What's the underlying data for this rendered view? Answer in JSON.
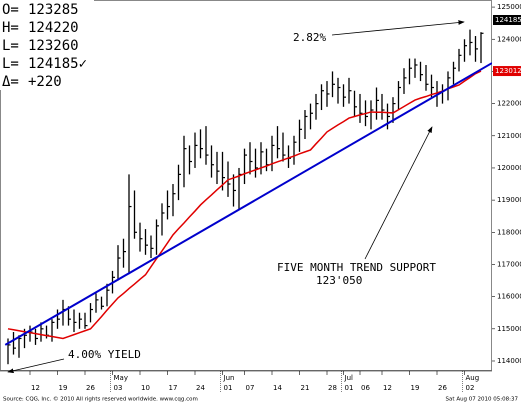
{
  "chart_data": {
    "type": "ohlc",
    "header": [
      {
        "key": "O=",
        "text": "123285"
      },
      {
        "key": "H=",
        "text": "124220"
      },
      {
        "key": "L=",
        "text": "123260"
      },
      {
        "key": "L=",
        "text": "124185✓"
      },
      {
        "key": "Δ=",
        "text": "+220"
      }
    ],
    "categories": [
      null,
      null,
      null,
      null,
      "12",
      null,
      null,
      null,
      null,
      "19",
      null,
      null,
      null,
      null,
      "26",
      null,
      null,
      null,
      null,
      "03",
      null,
      null,
      null,
      null,
      "10",
      null,
      null,
      null,
      null,
      "17",
      null,
      null,
      null,
      null,
      "24",
      null,
      null,
      null,
      null,
      "01",
      null,
      null,
      null,
      "07",
      null,
      null,
      null,
      null,
      "14",
      null,
      null,
      null,
      null,
      "21",
      null,
      null,
      null,
      null,
      "28",
      null,
      null,
      "01",
      null,
      null,
      "06",
      null,
      null,
      null,
      "12",
      null,
      null,
      null,
      null,
      "19",
      null,
      null,
      null,
      null,
      "26",
      null,
      null,
      null,
      null,
      "02",
      null,
      null,
      null
    ],
    "months": [
      null,
      null,
      null,
      null,
      null,
      null,
      null,
      null,
      null,
      null,
      null,
      null,
      null,
      null,
      null,
      null,
      null,
      null,
      null,
      "May",
      null,
      null,
      null,
      null,
      null,
      null,
      null,
      null,
      null,
      null,
      null,
      null,
      null,
      null,
      null,
      null,
      null,
      null,
      null,
      "Jun",
      null,
      null,
      null,
      null,
      null,
      null,
      null,
      null,
      null,
      null,
      null,
      null,
      null,
      null,
      null,
      null,
      null,
      null,
      null,
      null,
      null,
      "Jul",
      null,
      null,
      null,
      null,
      null,
      null,
      null,
      null,
      null,
      null,
      null,
      null,
      null,
      null,
      null,
      null,
      null,
      null,
      null,
      null,
      null,
      "Aug",
      null,
      null,
      null
    ],
    "bar_color": "#000000",
    "high": [
      114700,
      114900,
      114800,
      115000,
      115100,
      115000,
      115200,
      115100,
      115300,
      115600,
      115900,
      115700,
      115600,
      115500,
      115500,
      115800,
      116100,
      116000,
      116400,
      116800,
      117600,
      117800,
      119800,
      119300,
      118300,
      118100,
      117900,
      118400,
      118900,
      119300,
      119500,
      120100,
      121000,
      120700,
      121100,
      121200,
      121300,
      120700,
      120500,
      120500,
      120200,
      119800,
      120000,
      120600,
      120800,
      120600,
      120800,
      120600,
      121000,
      121300,
      121100,
      120700,
      121000,
      121500,
      121800,
      122000,
      122300,
      122600,
      122700,
      123000,
      122800,
      122600,
      122800,
      122400,
      122300,
      122100,
      122100,
      122500,
      122300,
      122000,
      122200,
      122700,
      123100,
      123400,
      123400,
      123300,
      123200,
      122900,
      122700,
      122600,
      123000,
      123300,
      123700,
      124000,
      124300,
      124100,
      124220
    ],
    "low": [
      113900,
      114200,
      114100,
      114400,
      114600,
      114500,
      114600,
      114700,
      114600,
      115000,
      115100,
      115100,
      114900,
      115000,
      115000,
      115200,
      115500,
      115600,
      115700,
      116100,
      116500,
      116900,
      116700,
      117800,
      117400,
      117300,
      117200,
      117300,
      117900,
      118400,
      118500,
      119000,
      119400,
      119800,
      120000,
      120300,
      120100,
      119700,
      119500,
      119300,
      119100,
      118800,
      118700,
      119500,
      119800,
      119700,
      119800,
      119900,
      119900,
      120300,
      120200,
      120000,
      120100,
      120500,
      120900,
      121200,
      121500,
      121800,
      121900,
      122200,
      122000,
      121900,
      122000,
      121600,
      121400,
      121300,
      121200,
      121500,
      121500,
      121200,
      121400,
      121800,
      122300,
      122600,
      122800,
      122700,
      122400,
      122200,
      121900,
      122000,
      122100,
      122600,
      123000,
      123300,
      123500,
      123300,
      123260
    ],
    "close": [
      114500,
      114400,
      114700,
      114800,
      114900,
      114700,
      115000,
      114800,
      115200,
      115300,
      115600,
      115300,
      115200,
      115300,
      115100,
      115600,
      115900,
      115700,
      116200,
      116600,
      117200,
      117400,
      118800,
      118000,
      117800,
      117600,
      117500,
      118200,
      118600,
      118800,
      119200,
      119800,
      120600,
      120200,
      120700,
      120600,
      120400,
      120100,
      119900,
      119700,
      119500,
      119300,
      119800,
      120400,
      120200,
      120000,
      120500,
      120100,
      120700,
      120600,
      120400,
      120300,
      120800,
      121200,
      121600,
      121700,
      122000,
      122400,
      122300,
      122600,
      122500,
      122200,
      122400,
      121900,
      121700,
      121600,
      121800,
      122100,
      121800,
      121600,
      122000,
      122500,
      122800,
      123100,
      123200,
      122900,
      122600,
      122500,
      122300,
      122400,
      122800,
      123100,
      123500,
      123800,
      123900,
      123700,
      124185
    ],
    "moving_average": {
      "color": "#e00000",
      "values": [
        115000,
        114970,
        114940,
        114910,
        114880,
        114850,
        114820,
        114790,
        114760,
        114730,
        114700,
        114760,
        114820,
        114880,
        114940,
        115000,
        115190,
        115380,
        115580,
        115770,
        115960,
        116100,
        116250,
        116390,
        116540,
        116680,
        116930,
        117180,
        117420,
        117670,
        117920,
        118110,
        118290,
        118480,
        118660,
        118850,
        119010,
        119160,
        119320,
        119470,
        119630,
        119690,
        119750,
        119820,
        119880,
        119940,
        120000,
        120060,
        120130,
        120190,
        120250,
        120310,
        120370,
        120440,
        120500,
        120560,
        120750,
        120930,
        121120,
        121230,
        121340,
        121440,
        121550,
        121600,
        121650,
        121690,
        121740,
        121730,
        121730,
        121720,
        121710,
        121810,
        121910,
        122010,
        122110,
        122170,
        122220,
        122280,
        122330,
        122390,
        122460,
        122520,
        122580,
        122700,
        122810,
        122930,
        123012
      ]
    },
    "trend_line": {
      "color": "#0000cc",
      "x": [
        -0.5,
        88
      ],
      "y": [
        114500,
        123260
      ]
    },
    "ylim": [
      113720,
      125220
    ],
    "yticks": [
      114000,
      115000,
      116000,
      117000,
      118000,
      119000,
      120000,
      121000,
      122000,
      123000,
      124000,
      125000
    ],
    "annotations": {
      "change": "2.82%",
      "support": "FIVE MONTH TREND SUPPORT",
      "support_level": "123'050",
      "yield": "4.00% YIELD"
    },
    "footer_left": "Source: CQG, Inc. © 2010 All rights reserved worldwide. www.cqg.com",
    "footer_right": "Sat Aug 07 2010 05:08:37"
  }
}
